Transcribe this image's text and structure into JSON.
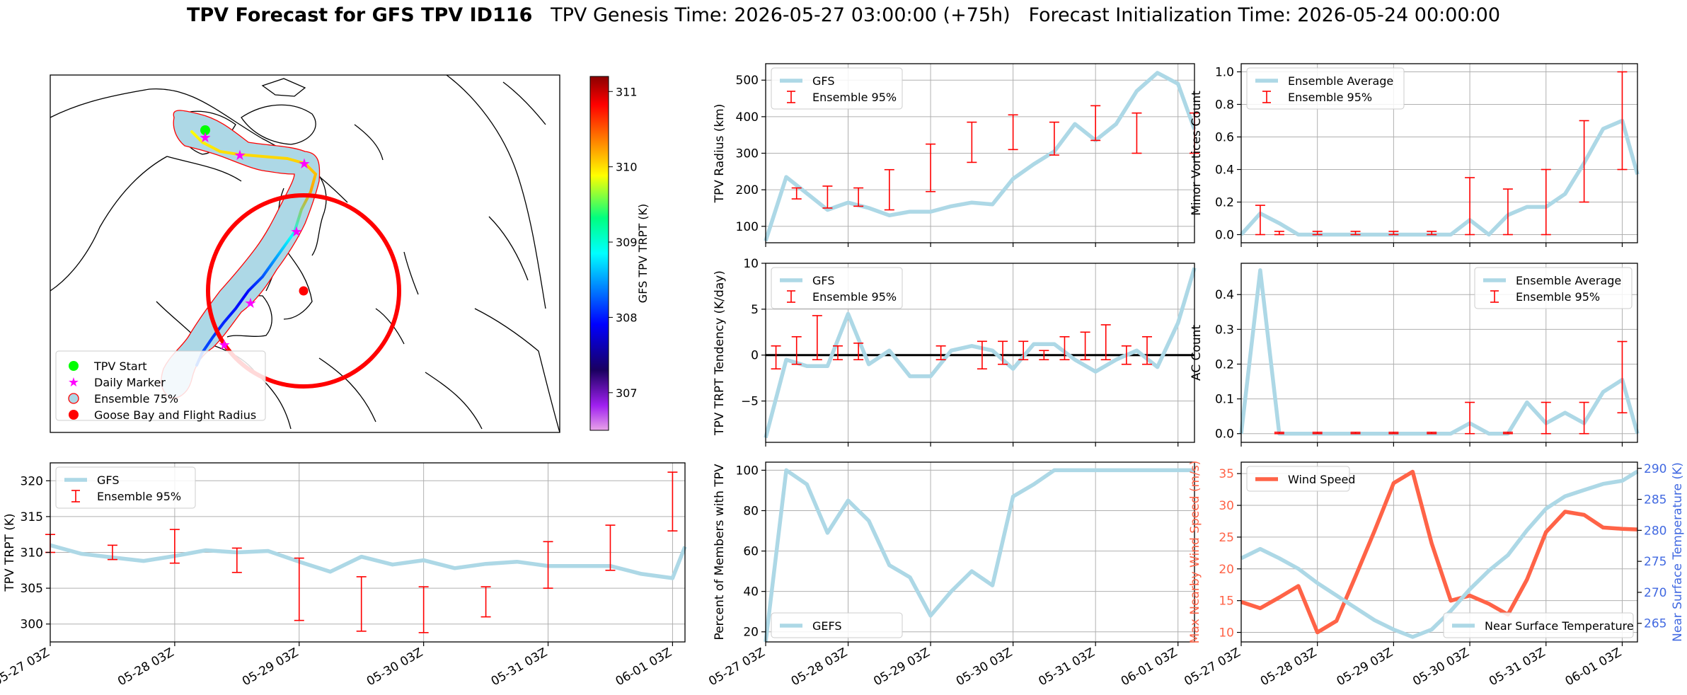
{
  "header": {
    "title_bold": "TPV Forecast for GFS TPV ID116",
    "genesis": "TPV Genesis Time: 2026-05-27 03:00:00 (+75h)",
    "init": "Forecast Initialization Time: 2026-05-24 00:00:00"
  },
  "colors": {
    "gfs_line": "#add8e6",
    "ensemble_bar": "#ff0000",
    "wind": "#ff6347",
    "temperature_axis": "#4169e1",
    "ensemble75_fill": "#add8e6",
    "flight_radius": "#ff0000",
    "tpv_start": "#00ff00",
    "daily_marker": "#ff00ff"
  },
  "time_ticks": [
    "05-27 03Z",
    "05-28 03Z",
    "05-29 03Z",
    "05-30 03Z",
    "05-31 03Z",
    "06-01 03Z"
  ],
  "map": {
    "colorbar": {
      "label": "GFS TPV TRPT (K)",
      "ticks": [
        "311",
        "310",
        "309",
        "308",
        "307"
      ],
      "range": [
        306.5,
        311.2
      ]
    },
    "legend": [
      "TPV Start",
      "Daily Marker",
      "Ensemble 75%",
      "Goose Bay and Flight Radius"
    ]
  },
  "chart_data": [
    {
      "id": "radius",
      "type": "line",
      "ylabel": "TPV Radius (km)",
      "ylim": [
        55,
        545
      ],
      "yticks": [
        100,
        200,
        300,
        400,
        500
      ],
      "xlim": [
        0,
        5.2
      ],
      "hline": null,
      "legend": [
        "GFS",
        "Ensemble 95%"
      ],
      "legend_pos": "top-left",
      "series": [
        {
          "name": "GFS",
          "x": [
            0,
            0.25,
            0.5,
            0.75,
            1,
            1.25,
            1.5,
            1.75,
            2,
            2.25,
            2.5,
            2.75,
            3,
            3.25,
            3.5,
            3.75,
            4,
            4.25,
            4.5,
            4.75,
            5,
            5.2
          ],
          "y": [
            60,
            235,
            190,
            145,
            165,
            150,
            130,
            140,
            140,
            155,
            165,
            160,
            230,
            270,
            305,
            380,
            335,
            380,
            470,
            520,
            490,
            365
          ]
        }
      ],
      "errorbars": [
        {
          "x": 0.375,
          "lo": 175,
          "hi": 205
        },
        {
          "x": 0.75,
          "lo": 150,
          "hi": 210
        },
        {
          "x": 1.125,
          "lo": 155,
          "hi": 205
        },
        {
          "x": 1.5,
          "lo": 145,
          "hi": 255
        },
        {
          "x": 2.0,
          "lo": 195,
          "hi": 325
        },
        {
          "x": 2.5,
          "lo": 275,
          "hi": 385
        },
        {
          "x": 3.0,
          "lo": 310,
          "hi": 405
        },
        {
          "x": 3.5,
          "lo": 295,
          "hi": 385
        },
        {
          "x": 4.0,
          "lo": 335,
          "hi": 430
        },
        {
          "x": 4.5,
          "lo": 300,
          "hi": 410
        },
        {
          "x": 5.2,
          "lo": 300,
          "hi": 410
        }
      ]
    },
    {
      "id": "tendency",
      "type": "line",
      "ylabel": "TPV TRPT Tendency (K/day)",
      "ylim": [
        -9.5,
        10
      ],
      "yticks": [
        -5,
        0,
        5,
        10
      ],
      "xlim": [
        0,
        5.2
      ],
      "hline": 0,
      "legend": [
        "GFS",
        "Ensemble 95%"
      ],
      "legend_pos": "top-left",
      "series": [
        {
          "name": "GFS",
          "x": [
            0,
            0.25,
            0.5,
            0.75,
            1,
            1.25,
            1.5,
            1.75,
            2,
            2.25,
            2.5,
            2.75,
            3,
            3.25,
            3.5,
            3.75,
            4,
            4.25,
            4.5,
            4.75,
            5,
            5.2
          ],
          "y": [
            -9,
            -0.5,
            -1.2,
            -1.2,
            4.5,
            -1,
            0.5,
            -2.3,
            -2.3,
            0.5,
            1,
            0.5,
            -1.5,
            1.2,
            1.2,
            -0.5,
            -1.8,
            -0.5,
            0.5,
            -1.3,
            3.5,
            9.5
          ]
        }
      ],
      "errorbars": [
        {
          "x": 0.125,
          "lo": -1.5,
          "hi": 1
        },
        {
          "x": 0.375,
          "lo": -1,
          "hi": 2
        },
        {
          "x": 0.625,
          "lo": -0.5,
          "hi": 4.3
        },
        {
          "x": 0.875,
          "lo": -0.5,
          "hi": 1
        },
        {
          "x": 1.125,
          "lo": -0.5,
          "hi": 1.3
        },
        {
          "x": 2.125,
          "lo": -0.5,
          "hi": 1
        },
        {
          "x": 2.625,
          "lo": -1.5,
          "hi": 1.5
        },
        {
          "x": 2.875,
          "lo": -1,
          "hi": 1.5
        },
        {
          "x": 3.125,
          "lo": -0.5,
          "hi": 1.5
        },
        {
          "x": 3.375,
          "lo": -0.5,
          "hi": 0.5
        },
        {
          "x": 3.625,
          "lo": -0.5,
          "hi": 2
        },
        {
          "x": 3.875,
          "lo": -0.5,
          "hi": 2.5
        },
        {
          "x": 4.125,
          "lo": -0.5,
          "hi": 3.3
        },
        {
          "x": 4.375,
          "lo": -1,
          "hi": 1
        },
        {
          "x": 4.625,
          "lo": -1,
          "hi": 2
        }
      ]
    },
    {
      "id": "members",
      "type": "line",
      "ylabel": "Percent of Members with TPV",
      "ylim": [
        15,
        104
      ],
      "yticks": [
        20,
        40,
        60,
        80,
        100
      ],
      "xlim": [
        0,
        5.2
      ],
      "hline": null,
      "legend": [
        "GEFS"
      ],
      "legend_pos": "bottom-left",
      "series": [
        {
          "name": "GEFS",
          "x": [
            0,
            0.25,
            0.5,
            0.75,
            1,
            1.25,
            1.5,
            1.75,
            2,
            2.25,
            2.5,
            2.75,
            3,
            3.25,
            3.5,
            3.75,
            4,
            4.25,
            4.5,
            4.75,
            5,
            5.2
          ],
          "y": [
            15,
            100,
            93,
            69,
            85,
            75,
            53,
            47,
            28,
            40,
            50,
            43,
            87,
            93,
            100,
            100,
            100,
            100,
            100,
            100,
            100,
            100
          ]
        }
      ],
      "errorbars": []
    },
    {
      "id": "minor_vortices",
      "type": "line",
      "ylabel": "Minor Vortices Count",
      "ylim": [
        -0.05,
        1.05
      ],
      "yticks": [
        0.0,
        0.2,
        0.4,
        0.6,
        0.8,
        1.0
      ],
      "xlim": [
        0,
        5.2
      ],
      "hline": null,
      "legend": [
        "Ensemble Average",
        "Ensemble 95%"
      ],
      "legend_pos": "top-left",
      "series": [
        {
          "name": "Ensemble Average",
          "x": [
            0,
            0.25,
            0.5,
            0.75,
            1,
            1.25,
            1.5,
            1.75,
            2,
            2.25,
            2.5,
            2.75,
            3,
            3.25,
            3.5,
            3.75,
            4,
            4.25,
            4.5,
            4.75,
            5,
            5.2
          ],
          "y": [
            0,
            0.13,
            0.07,
            0,
            0,
            0,
            0,
            0,
            0,
            0,
            0,
            0,
            0.09,
            0,
            0.12,
            0.17,
            0.17,
            0.25,
            0.44,
            0.65,
            0.7,
            0.37
          ]
        }
      ],
      "errorbars": [
        {
          "x": 0.25,
          "lo": 0,
          "hi": 0.18
        },
        {
          "x": 0.5,
          "lo": 0,
          "hi": 0.02
        },
        {
          "x": 1.0,
          "lo": 0,
          "hi": 0.02
        },
        {
          "x": 1.5,
          "lo": 0,
          "hi": 0.02
        },
        {
          "x": 2.0,
          "lo": 0,
          "hi": 0.02
        },
        {
          "x": 2.5,
          "lo": 0,
          "hi": 0.02
        },
        {
          "x": 3.0,
          "lo": 0,
          "hi": 0.35
        },
        {
          "x": 3.5,
          "lo": 0,
          "hi": 0.28
        },
        {
          "x": 4.0,
          "lo": 0,
          "hi": 0.4
        },
        {
          "x": 4.5,
          "lo": 0.2,
          "hi": 0.7
        },
        {
          "x": 5.0,
          "lo": 0.4,
          "hi": 1.0
        }
      ]
    },
    {
      "id": "ac_count",
      "type": "line",
      "ylabel": "AC Count",
      "ylim": [
        -0.025,
        0.49
      ],
      "yticks": [
        0.0,
        0.1,
        0.2,
        0.3,
        0.4
      ],
      "xlim": [
        0,
        5.2
      ],
      "hline": null,
      "legend": [
        "Ensemble Average",
        "Ensemble 95%"
      ],
      "legend_pos": "top-right",
      "series": [
        {
          "name": "Ensemble Average",
          "x": [
            0,
            0.25,
            0.5,
            0.75,
            1,
            1.25,
            1.5,
            1.75,
            2,
            2.25,
            2.5,
            2.75,
            3,
            3.25,
            3.5,
            3.75,
            4,
            4.25,
            4.5,
            4.75,
            5,
            5.2
          ],
          "y": [
            0,
            0.47,
            0,
            0,
            0,
            0,
            0,
            0,
            0,
            0,
            0,
            0,
            0.03,
            0,
            0,
            0.09,
            0.03,
            0.06,
            0.03,
            0.12,
            0.155,
            0
          ]
        }
      ],
      "errorbars": [
        {
          "x": 0.5,
          "lo": 0,
          "hi": 0.004
        },
        {
          "x": 1.0,
          "lo": 0,
          "hi": 0.004
        },
        {
          "x": 1.5,
          "lo": 0,
          "hi": 0.004
        },
        {
          "x": 2.0,
          "lo": 0,
          "hi": 0.004
        },
        {
          "x": 2.5,
          "lo": 0,
          "hi": 0.004
        },
        {
          "x": 3.0,
          "lo": 0,
          "hi": 0.09
        },
        {
          "x": 3.5,
          "lo": 0,
          "hi": 0.004
        },
        {
          "x": 4.0,
          "lo": 0,
          "hi": 0.09
        },
        {
          "x": 4.5,
          "lo": 0,
          "hi": 0.09
        },
        {
          "x": 5.0,
          "lo": 0.06,
          "hi": 0.265
        }
      ]
    },
    {
      "id": "trpt",
      "type": "line",
      "ylabel": "TPV TRPT (K)",
      "ylim": [
        297.5,
        322.5
      ],
      "yticks": [
        300,
        305,
        310,
        315,
        320
      ],
      "xlim": [
        0,
        5.1
      ],
      "hline": null,
      "legend": [
        "GFS",
        "Ensemble 95%"
      ],
      "legend_pos": "top-left",
      "series": [
        {
          "name": "GFS",
          "x": [
            0,
            0.25,
            0.5,
            0.75,
            1,
            1.25,
            1.5,
            1.75,
            2,
            2.25,
            2.5,
            2.75,
            3,
            3.25,
            3.5,
            3.75,
            4,
            4.25,
            4.5,
            4.75,
            5,
            5.1
          ],
          "y": [
            311,
            309.8,
            309.3,
            308.8,
            309.5,
            310.3,
            310,
            310.2,
            308.7,
            307.3,
            309.4,
            308.3,
            308.9,
            307.8,
            308.4,
            308.7,
            308.1,
            308.1,
            308.1,
            307,
            306.4,
            310.8
          ]
        }
      ],
      "errorbars": [
        {
          "x": 0.0,
          "lo": 310,
          "hi": 312.5
        },
        {
          "x": 0.5,
          "lo": 309,
          "hi": 311
        },
        {
          "x": 1.0,
          "lo": 308.5,
          "hi": 313.2
        },
        {
          "x": 1.5,
          "lo": 307.2,
          "hi": 310.6
        },
        {
          "x": 2.0,
          "lo": 300.5,
          "hi": 309.2
        },
        {
          "x": 2.5,
          "lo": 299,
          "hi": 306.6
        },
        {
          "x": 3.0,
          "lo": 298.8,
          "hi": 305.2
        },
        {
          "x": 3.5,
          "lo": 301,
          "hi": 305.2
        },
        {
          "x": 4.0,
          "lo": 305,
          "hi": 311.5
        },
        {
          "x": 4.5,
          "lo": 307.5,
          "hi": 313.8
        },
        {
          "x": 5.0,
          "lo": 313,
          "hi": 321.2
        }
      ]
    },
    {
      "id": "wind_temp",
      "type": "line",
      "ylabel": "Max Nearby Wind Speed (m/s)",
      "ylabel_right": "Near Surface Temperature (K)",
      "ylim": [
        8.5,
        36.8
      ],
      "yticks": [
        10,
        15,
        20,
        25,
        30,
        35
      ],
      "ylim_right": [
        262,
        291
      ],
      "yticks_right": [
        265,
        270,
        275,
        280,
        285,
        290
      ],
      "xlim": [
        0,
        5.2
      ],
      "hline": null,
      "legend": [
        "Wind Speed"
      ],
      "legend_pos": "top-left",
      "legend_right": [
        "Near Surface Temperature"
      ],
      "series": [
        {
          "name": "Wind Speed",
          "axis": "left",
          "x": [
            0,
            0.25,
            0.5,
            0.75,
            1,
            1.25,
            1.5,
            1.75,
            2,
            2.25,
            2.5,
            2.75,
            3,
            3.25,
            3.5,
            3.75,
            4,
            4.25,
            4.5,
            4.75,
            5,
            5.2
          ],
          "y": [
            14.8,
            13.8,
            15.5,
            17.3,
            10,
            11.8,
            18.8,
            26,
            33.5,
            35.3,
            24,
            15,
            15.8,
            14.5,
            12.8,
            18.3,
            25.8,
            29,
            28.5,
            26.5,
            26.3,
            26.2
          ]
        },
        {
          "name": "Near Surface Temperature",
          "axis": "right",
          "x": [
            0,
            0.25,
            0.5,
            0.75,
            1,
            1.25,
            1.5,
            1.75,
            2,
            2.25,
            2.5,
            2.75,
            3,
            3.25,
            3.5,
            3.75,
            4,
            4.25,
            4.5,
            4.75,
            5,
            5.2
          ],
          "y": [
            275.5,
            277,
            275.5,
            273.8,
            271.5,
            269.5,
            267.5,
            265.5,
            264,
            262.8,
            264,
            267,
            270.5,
            273.5,
            276,
            280,
            283.5,
            285.5,
            286.5,
            287.5,
            288,
            289.5
          ]
        }
      ],
      "errorbars": []
    }
  ]
}
